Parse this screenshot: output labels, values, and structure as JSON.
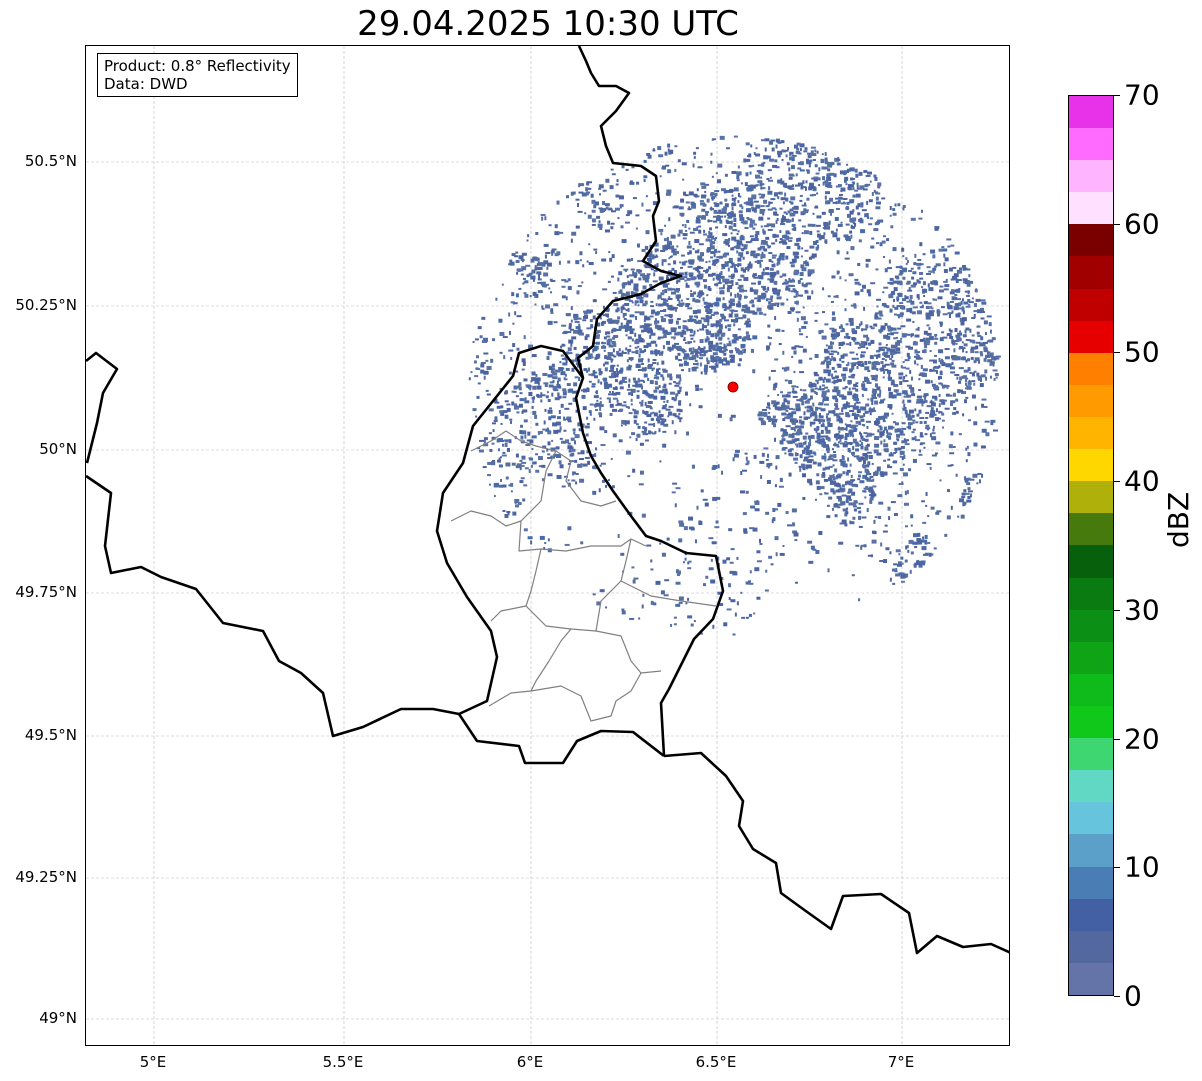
{
  "title": "29.04.2025 10:30 UTC",
  "info": {
    "product": "Product: 0.8° Reflectivity",
    "data": "Data: DWD"
  },
  "x_ticks": [
    "5°E",
    "5.5°E",
    "6°E",
    "6.5°E",
    "7°E"
  ],
  "y_ticks": [
    "50.5°N",
    "50.25°N",
    "50°N",
    "49.75°N",
    "49.5°N",
    "49.25°N",
    "49°N"
  ],
  "colorbar": {
    "label": "dBZ",
    "ticks": [
      "0",
      "10",
      "20",
      "30",
      "40",
      "50",
      "60",
      "70"
    ],
    "range": [
      0,
      70
    ],
    "step": 2.5,
    "colors": [
      "#6473a8",
      "#5468a0",
      "#4460a4",
      "#4b7db5",
      "#5aa0c8",
      "#66c4dc",
      "#60d8c4",
      "#3dd670",
      "#10c81a",
      "#0fbb1a",
      "#0ea416",
      "#0b8f14",
      "#097b10",
      "#06600c",
      "#477a0c",
      "#b0b00a",
      "#ffd700",
      "#ffb400",
      "#ff9a00",
      "#ff7f00",
      "#e60000",
      "#c00000",
      "#a00000",
      "#7a0000",
      "#ffe0ff",
      "#ffb4ff",
      "#ff6aff",
      "#e832ea"
    ]
  },
  "radar_site_color": "#ff0000"
}
